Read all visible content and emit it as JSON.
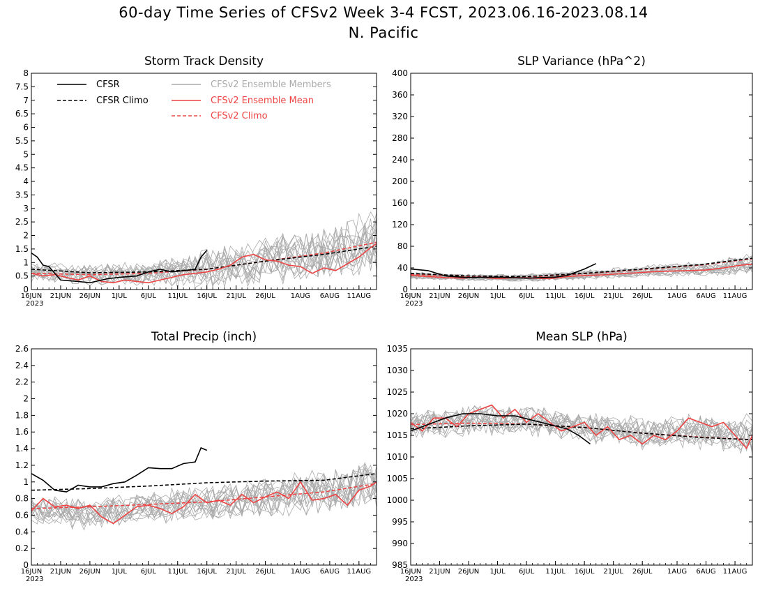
{
  "figure": {
    "title": "60-day Time Series of CFSv2 Week 3-4 FCST, 2023.06.16-2023.08.14",
    "subtitle": "N. Pacific"
  },
  "legend": {
    "cfsr": "CFSR",
    "cfsr_climo": "CFSR Climo",
    "members": "CFSv2 Ensemble Members",
    "mean": "CFSv2 Ensemble Mean",
    "cfsv2_climo": "CFSv2 Climo"
  },
  "colors": {
    "cfsr": "#000000",
    "members": "#aaaaaa",
    "mean": "#ee4444",
    "cfsv2_climo": "#ee4444",
    "axis": "#000000"
  },
  "x_axis": {
    "n_days": 60,
    "tick_labels": [
      "16JUN",
      "21JUN",
      "26JUN",
      "1JUL",
      "6JUL",
      "11JUL",
      "16JUL",
      "21JUL",
      "26JUL",
      "1AUG",
      "6AUG",
      "11AUG"
    ],
    "tick_days": [
      0,
      5,
      10,
      15,
      20,
      25,
      30,
      35,
      40,
      46,
      51,
      56
    ],
    "year_label": "2023"
  },
  "chart_data": [
    {
      "type": "line",
      "title": "Storm Track Density",
      "ylim": [
        0,
        8
      ],
      "yticks": [
        "0",
        "0.5",
        "1",
        "1.5",
        "2",
        "2.5",
        "3",
        "3.5",
        "4",
        "4.5",
        "5",
        "5.5",
        "6",
        "6.5",
        "7",
        "7.5",
        "8"
      ],
      "cfsr": {
        "x": [
          0,
          1,
          2,
          3,
          5,
          8,
          10,
          13,
          15,
          18,
          20,
          22,
          24,
          26,
          28,
          29,
          30
        ],
        "y": [
          1.35,
          1.2,
          0.9,
          0.85,
          0.35,
          0.3,
          0.25,
          0.4,
          0.45,
          0.5,
          0.65,
          0.75,
          0.65,
          0.7,
          0.75,
          1.2,
          1.45
        ]
      },
      "cfsr_climo": {
        "x": [
          0,
          10,
          20,
          30,
          40,
          50,
          59
        ],
        "y": [
          0.75,
          0.62,
          0.65,
          0.75,
          1.05,
          1.3,
          1.6
        ]
      },
      "ens_mean": {
        "x": [
          0,
          2,
          4,
          6,
          8,
          10,
          12,
          14,
          16,
          18,
          20,
          22,
          24,
          26,
          28,
          30,
          32,
          34,
          36,
          38,
          40,
          42,
          44,
          46,
          48,
          50,
          52,
          54,
          56,
          58,
          59
        ],
        "y": [
          0.6,
          0.5,
          0.55,
          0.45,
          0.35,
          0.5,
          0.3,
          0.25,
          0.35,
          0.3,
          0.25,
          0.35,
          0.45,
          0.55,
          0.6,
          0.65,
          0.75,
          0.9,
          1.2,
          1.3,
          1.1,
          1.05,
          0.9,
          0.85,
          0.6,
          0.8,
          0.7,
          0.95,
          1.2,
          1.55,
          1.7
        ]
      },
      "cfsv2_climo": {
        "x": [
          0,
          10,
          20,
          30,
          40,
          50,
          59
        ],
        "y": [
          0.6,
          0.55,
          0.6,
          0.75,
          1.05,
          1.35,
          1.75
        ]
      },
      "member_band": {
        "center": [
          0.6,
          0.55,
          0.6,
          0.75,
          1.05,
          1.35,
          1.75
        ],
        "amplitude": [
          0.45,
          0.45,
          0.55,
          0.8,
          1.0,
          1.1,
          1.3
        ]
      }
    },
    {
      "type": "line",
      "title": "SLP Variance (hPa^2)",
      "ylim": [
        0,
        400
      ],
      "yticks": [
        "0",
        "40",
        "80",
        "120",
        "160",
        "200",
        "240",
        "280",
        "320",
        "360",
        "400"
      ],
      "cfsr": {
        "x": [
          0,
          3,
          6,
          10,
          15,
          20,
          25,
          27,
          30,
          32
        ],
        "y": [
          38,
          35,
          25,
          22,
          23,
          21,
          23,
          26,
          38,
          48
        ]
      },
      "cfsr_climo": {
        "x": [
          0,
          10,
          20,
          30,
          40,
          50,
          59
        ],
        "y": [
          30,
          25,
          24,
          30,
          38,
          46,
          58
        ]
      },
      "ens_mean": {
        "x": [
          0,
          3,
          6,
          9,
          12,
          15,
          18,
          21,
          24,
          27,
          30,
          33,
          36,
          39,
          42,
          45,
          48,
          51,
          54,
          57,
          59
        ],
        "y": [
          26,
          24,
          22,
          21,
          23,
          20,
          22,
          21,
          20,
          24,
          26,
          27,
          29,
          31,
          33,
          34,
          35,
          36,
          40,
          45,
          47
        ]
      },
      "cfsv2_climo": {
        "x": [
          0,
          10,
          20,
          30,
          40,
          50,
          59
        ],
        "y": [
          28,
          24,
          23,
          29,
          37,
          45,
          57
        ]
      },
      "member_band": {
        "center": [
          26,
          22,
          22,
          27,
          33,
          38,
          47
        ],
        "amplitude": [
          8,
          7,
          8,
          10,
          13,
          16,
          22
        ]
      }
    },
    {
      "type": "line",
      "title": "Total Precip (inch)",
      "ylim": [
        0,
        2.6
      ],
      "yticks": [
        "0",
        "0.2",
        "0.4",
        "0.6",
        "0.8",
        "1",
        "1.2",
        "1.4",
        "1.6",
        "1.8",
        "2",
        "2.2",
        "2.4",
        "2.6"
      ],
      "cfsr": {
        "x": [
          0,
          2,
          4,
          6,
          8,
          10,
          12,
          14,
          16,
          18,
          20,
          22,
          24,
          26,
          28,
          29,
          30
        ],
        "y": [
          1.1,
          1.02,
          0.9,
          0.88,
          0.96,
          0.94,
          0.94,
          0.98,
          1.0,
          1.08,
          1.17,
          1.16,
          1.16,
          1.22,
          1.24,
          1.41,
          1.38
        ]
      },
      "cfsr_climo": {
        "x": [
          0,
          10,
          20,
          30,
          40,
          50,
          59
        ],
        "y": [
          0.9,
          0.92,
          0.95,
          0.99,
          1.01,
          1.02,
          1.1
        ]
      },
      "ens_mean": {
        "x": [
          0,
          2,
          4,
          6,
          8,
          10,
          12,
          14,
          16,
          18,
          20,
          22,
          24,
          26,
          28,
          30,
          32,
          34,
          36,
          38,
          40,
          42,
          44,
          46,
          48,
          50,
          52,
          54,
          56,
          58,
          59
        ],
        "y": [
          0.65,
          0.8,
          0.7,
          0.72,
          0.68,
          0.72,
          0.58,
          0.5,
          0.6,
          0.7,
          0.72,
          0.68,
          0.62,
          0.7,
          0.85,
          0.75,
          0.78,
          0.72,
          0.85,
          0.75,
          0.82,
          0.88,
          0.8,
          1.0,
          0.78,
          0.8,
          0.85,
          0.72,
          0.9,
          0.95,
          1.0
        ]
      },
      "cfsv2_climo": {
        "x": [
          0,
          10,
          20,
          30,
          40,
          50,
          59
        ],
        "y": [
          0.68,
          0.7,
          0.73,
          0.76,
          0.82,
          0.88,
          0.98
        ]
      },
      "member_band": {
        "center": [
          0.68,
          0.62,
          0.7,
          0.75,
          0.82,
          0.88,
          0.98
        ],
        "amplitude": [
          0.2,
          0.22,
          0.22,
          0.25,
          0.28,
          0.28,
          0.3
        ]
      }
    },
    {
      "type": "line",
      "title": "Mean SLP (hPa)",
      "ylim": [
        985,
        1035
      ],
      "yticks": [
        "985",
        "990",
        "995",
        "1000",
        "1005",
        "1010",
        "1015",
        "1020",
        "1025",
        "1030",
        "1035"
      ],
      "cfsr": {
        "x": [
          0,
          3,
          6,
          9,
          12,
          15,
          18,
          21,
          24,
          27,
          29,
          31
        ],
        "y": [
          1016,
          1017.5,
          1019,
          1020,
          1020,
          1019.5,
          1019.5,
          1018.5,
          1017.5,
          1016.5,
          1015,
          1013
        ]
      },
      "cfsr_climo": {
        "x": [
          0,
          10,
          20,
          30,
          40,
          50,
          59
        ],
        "y": [
          1016.5,
          1017.2,
          1017.6,
          1016.8,
          1015.5,
          1014.5,
          1014
        ]
      },
      "ens_mean": {
        "x": [
          0,
          2,
          4,
          6,
          8,
          10,
          12,
          14,
          16,
          18,
          20,
          22,
          24,
          26,
          28,
          30,
          32,
          34,
          36,
          38,
          40,
          42,
          44,
          46,
          48,
          50,
          52,
          54,
          56,
          58,
          59
        ],
        "y": [
          1018,
          1016,
          1019,
          1019,
          1017,
          1020,
          1021,
          1022,
          1019,
          1021,
          1018,
          1020,
          1018,
          1016,
          1017,
          1018,
          1015,
          1017,
          1014,
          1015,
          1013,
          1015,
          1014,
          1016,
          1019,
          1018,
          1017,
          1018,
          1015,
          1012,
          1015
        ]
      },
      "cfsv2_climo": {
        "x": [
          0,
          10,
          20,
          30,
          40,
          50,
          59
        ],
        "y": [
          1017.5,
          1017.8,
          1017.6,
          1016.8,
          1015.5,
          1014.6,
          1014
        ]
      },
      "member_band": {
        "center": [
          1017.5,
          1018.5,
          1018.5,
          1017,
          1015.5,
          1016,
          1015
        ],
        "amplitude": [
          3.5,
          4,
          4,
          4,
          4,
          4.5,
          5
        ]
      }
    }
  ]
}
